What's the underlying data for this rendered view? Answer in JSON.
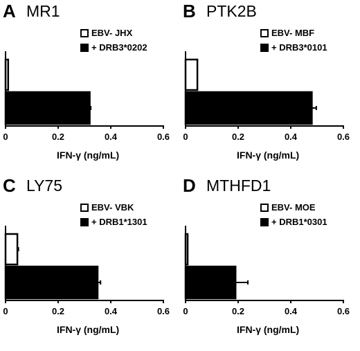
{
  "chart_data": [
    {
      "panel": "A",
      "title": "MR1",
      "type": "bar",
      "orientation": "horizontal",
      "series": [
        {
          "name": "EBV- JHX",
          "color": "#ffffff",
          "value": 0.01,
          "error": 0.0
        },
        {
          "name": "+ DRB3*0202",
          "color": "#000000",
          "value": 0.32,
          "error": 0.004
        }
      ],
      "xlabel": "IFN-γ (ng/mL)",
      "xlim": [
        0,
        0.6
      ],
      "ticks": [
        "0",
        "0.2",
        "0.4",
        "0.6"
      ],
      "tick_values": [
        0,
        0.2,
        0.4,
        0.6
      ]
    },
    {
      "panel": "B",
      "title": "PTK2B",
      "type": "bar",
      "orientation": "horizontal",
      "series": [
        {
          "name": "EBV- MBF",
          "color": "#ffffff",
          "value": 0.045,
          "error": 0.0
        },
        {
          "name": "+ DRB3*0101",
          "color": "#000000",
          "value": 0.48,
          "error": 0.017
        }
      ],
      "xlabel": "IFN-γ (ng/mL)",
      "xlim": [
        0,
        0.6
      ],
      "ticks": [
        "0",
        "0.2",
        "0.4",
        "0.6"
      ],
      "tick_values": [
        0,
        0.2,
        0.4,
        0.6
      ]
    },
    {
      "panel": "C",
      "title": "LY75",
      "type": "bar",
      "orientation": "horizontal",
      "series": [
        {
          "name": "EBV- VBK",
          "color": "#ffffff",
          "value": 0.045,
          "error": 0.004
        },
        {
          "name": "+ DRB1*1301",
          "color": "#000000",
          "value": 0.35,
          "error": 0.011
        }
      ],
      "xlabel": "IFN-γ (ng/mL)",
      "xlim": [
        0,
        0.6
      ],
      "ticks": [
        "0",
        "0.2",
        "0.4",
        "0.6"
      ],
      "tick_values": [
        0,
        0.2,
        0.4,
        0.6
      ]
    },
    {
      "panel": "D",
      "title": "MTHFD1",
      "type": "bar",
      "orientation": "horizontal",
      "series": [
        {
          "name": "EBV- MOE",
          "color": "#ffffff",
          "value": 0.008,
          "error": 0.0
        },
        {
          "name": "+ DRB1*0301",
          "color": "#000000",
          "value": 0.19,
          "error": 0.047
        }
      ],
      "xlabel": "IFN-γ (ng/mL)",
      "xlim": [
        0,
        0.6
      ],
      "ticks": [
        "0",
        "0.2",
        "0.4",
        "0.6"
      ],
      "tick_values": [
        0,
        0.2,
        0.4,
        0.6
      ]
    }
  ]
}
